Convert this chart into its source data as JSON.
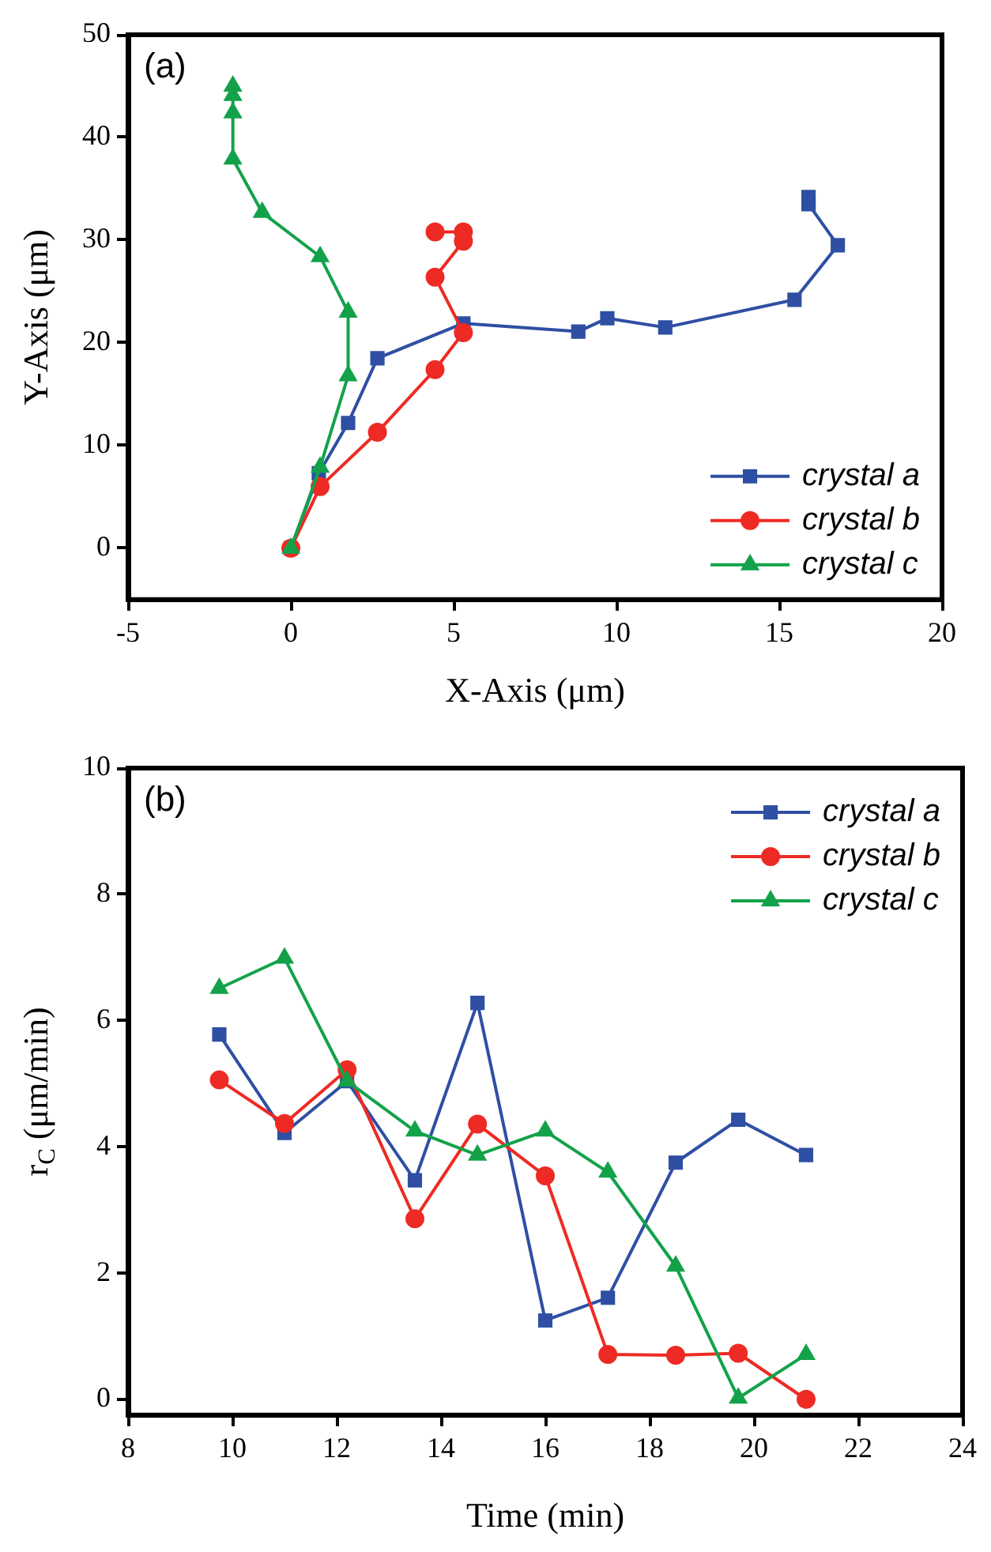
{
  "chart_data": [
    {
      "type": "line",
      "xlabel": "X-Axis (μm)",
      "ylabel": "Y-Axis (μm)",
      "annotations": [
        "(a)"
      ],
      "xlim": [
        -5,
        20
      ],
      "xticks": [
        -5,
        0,
        5,
        10,
        15,
        20
      ],
      "ylim": [
        -5,
        50
      ],
      "yticks": [
        0,
        10,
        20,
        30,
        40,
        50
      ],
      "legend": "bottom right",
      "series": [
        {
          "name": "crystal a",
          "color": "#2e4fa3",
          "marker": "square",
          "x": [
            0,
            0.86,
            1.76,
            2.66,
            5.3,
            8.83,
            9.72,
            11.5,
            15.47,
            16.8,
            15.9,
            15.9
          ],
          "values": [
            0,
            7.3,
            12.2,
            18.5,
            21.9,
            21.1,
            22.4,
            21.5,
            24.2,
            29.5,
            33.5,
            34.2
          ]
        },
        {
          "name": "crystal b",
          "color": "#ee2a24",
          "marker": "circle",
          "x": [
            0,
            0.9,
            2.66,
            4.43,
            5.3,
            4.43,
            5.3,
            5.3,
            4.43
          ],
          "values": [
            0,
            6.0,
            11.3,
            17.4,
            21.0,
            26.4,
            29.9,
            30.8,
            30.8
          ]
        },
        {
          "name": "crystal c",
          "color": "#13a24a",
          "marker": "triangle",
          "x": [
            0,
            0.9,
            1.76,
            1.76,
            0.9,
            -0.88,
            -1.78,
            -1.78,
            -1.78,
            -1.78
          ],
          "values": [
            0,
            7.9,
            16.8,
            23.0,
            28.4,
            32.7,
            37.9,
            42.4,
            44.1,
            45.0
          ]
        }
      ]
    },
    {
      "type": "line",
      "xlabel": "Time (min)",
      "ylabel": "r$_{C}$ (μm/min)",
      "annotations": [
        "(b)"
      ],
      "xlim": [
        8,
        24
      ],
      "xticks": [
        8,
        10,
        12,
        14,
        16,
        18,
        20,
        22,
        24
      ],
      "ylim": [
        -0.25,
        10
      ],
      "yticks": [
        0,
        2,
        4,
        6,
        8,
        10
      ],
      "legend": "top right",
      "x": [
        9.75,
        11,
        12.2,
        13.5,
        14.7,
        16,
        17.2,
        18.5,
        19.7,
        21
      ],
      "series": [
        {
          "name": "crystal a",
          "color": "#2e4fa3",
          "marker": "square",
          "values": [
            5.78,
            4.22,
            5.04,
            3.47,
            6.28,
            1.25,
            1.61,
            3.75,
            4.43,
            3.87
          ]
        },
        {
          "name": "crystal b",
          "color": "#ee2a24",
          "marker": "circle",
          "values": [
            5.06,
            4.37,
            5.22,
            2.86,
            4.36,
            3.54,
            0.71,
            0.7,
            0.73,
            0
          ]
        },
        {
          "name": "crystal c",
          "color": "#13a24a",
          "marker": "triangle",
          "values": [
            6.51,
            6.99,
            5.04,
            4.25,
            3.87,
            4.25,
            3.6,
            2.11,
            0.02,
            0.71
          ]
        }
      ]
    }
  ]
}
